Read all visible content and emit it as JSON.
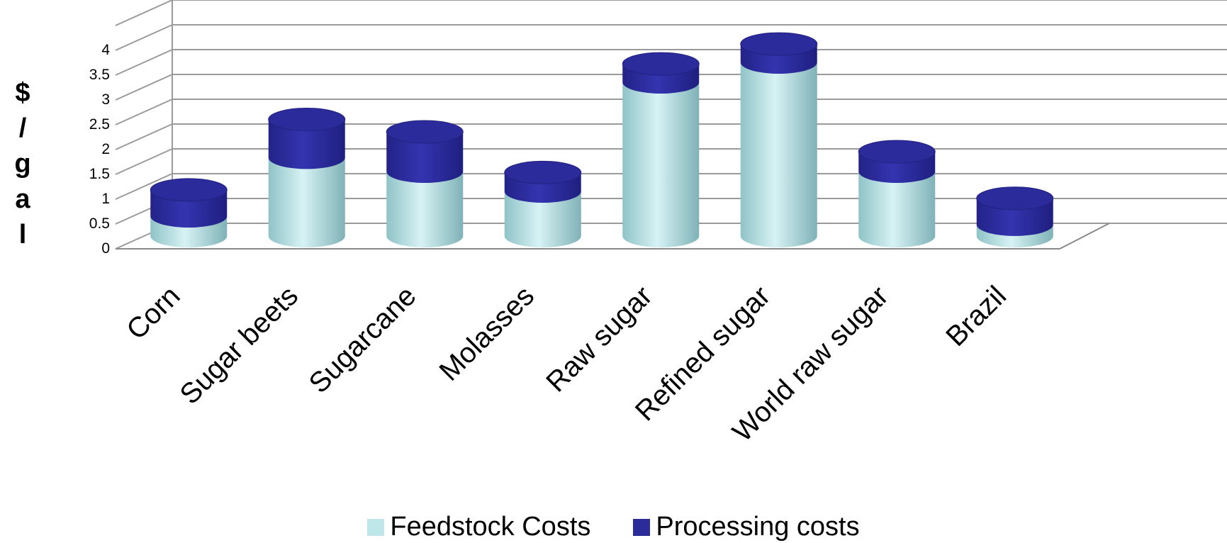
{
  "chart_data": {
    "type": "bar",
    "style": "stacked 3d cylinder",
    "categories": [
      "Corn",
      "Sugar beets",
      "Sugarcane",
      "Molasses",
      "Raw sugar",
      "Refined sugar",
      "World raw sugar",
      "Brazil"
    ],
    "series": [
      {
        "name": "Feedstock Costs",
        "color": "#bfe7ea",
        "values": [
          0.4,
          1.58,
          1.3,
          0.9,
          3.1,
          3.5,
          1.3,
          0.23
        ]
      },
      {
        "name": "Processing costs",
        "color": "#2b2b9a",
        "values": [
          0.53,
          0.77,
          0.8,
          0.38,
          0.37,
          0.37,
          0.4,
          0.53
        ]
      }
    ],
    "ylabel": "$/gal",
    "ylabel_letters": [
      "$",
      "/",
      "g",
      "a",
      "l"
    ],
    "yticks": [
      "0",
      "0.5",
      "1",
      "1.5",
      "2",
      "2.5",
      "3",
      "3.5",
      "4"
    ],
    "ylim": [
      0,
      4.5
    ],
    "grid": true,
    "legend_position": "bottom"
  }
}
